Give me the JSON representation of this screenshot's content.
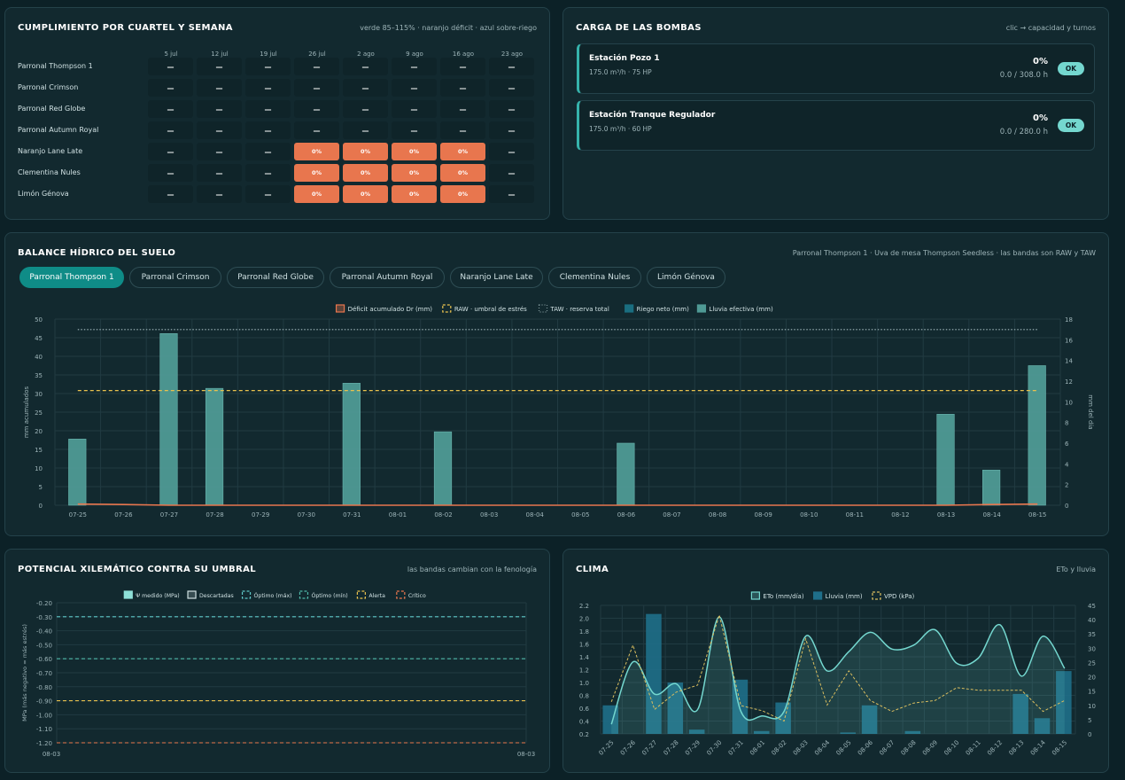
{
  "compliance": {
    "title": "CUMPLIMIENTO POR CUARTEL Y SEMANA",
    "legend": "verde 85–115% · naranjo déficit · azul sobre-riego",
    "weeks": [
      "5 jul",
      "12 jul",
      "19 jul",
      "26 jul",
      "2 ago",
      "9 ago",
      "16 ago",
      "23 ago"
    ],
    "rows": [
      {
        "label": "Parronal Thompson 1",
        "cells": [
          "—",
          "—",
          "—",
          "—",
          "—",
          "—",
          "—",
          "—"
        ]
      },
      {
        "label": "Parronal Crimson",
        "cells": [
          "—",
          "—",
          "—",
          "—",
          "—",
          "—",
          "—",
          "—"
        ]
      },
      {
        "label": "Parronal Red Globe",
        "cells": [
          "—",
          "—",
          "—",
          "—",
          "—",
          "—",
          "—",
          "—"
        ]
      },
      {
        "label": "Parronal Autumn Royal",
        "cells": [
          "—",
          "—",
          "—",
          "—",
          "—",
          "—",
          "—",
          "—"
        ]
      },
      {
        "label": "Naranjo Lane Late",
        "cells": [
          "—",
          "—",
          "—",
          "0%",
          "0%",
          "0%",
          "0%",
          "—"
        ]
      },
      {
        "label": "Clementina Nules",
        "cells": [
          "—",
          "—",
          "—",
          "0%",
          "0%",
          "0%",
          "0%",
          "—"
        ]
      },
      {
        "label": "Limón Génova",
        "cells": [
          "—",
          "—",
          "—",
          "0%",
          "0%",
          "0%",
          "0%",
          "—"
        ]
      }
    ]
  },
  "pumps": {
    "title": "CARGA DE LAS BOMBAS",
    "hint": "clic → capacidad y turnos",
    "items": [
      {
        "name": "Estación Pozo 1",
        "spec": "175.0 m³/h · 75 HP",
        "pct": "0%",
        "hours": "0.0 / 308.0 h",
        "status": "OK"
      },
      {
        "name": "Estación Tranque Regulador",
        "spec": "175.0 m³/h · 60 HP",
        "pct": "0%",
        "hours": "0.0 / 280.0 h",
        "status": "OK"
      }
    ]
  },
  "balance": {
    "title": "BALANCE HÍDRICO DEL SUELO",
    "subtitle": "Parronal Thompson 1 · Uva de mesa Thompson Seedless · las bandas son RAW y TAW",
    "tabs": [
      "Parronal Thompson 1",
      "Parronal Crimson",
      "Parronal Red Globe",
      "Parronal Autumn Royal",
      "Naranjo Lane Late",
      "Clementina Nules",
      "Limón Génova"
    ],
    "active_tab": 0
  },
  "xylem": {
    "title": "POTENCIAL XILEMÁTICO CONTRA SU UMBRAL",
    "subtitle": "las bandas cambian con la fenología"
  },
  "climate": {
    "title": "CLIMA",
    "subtitle": "ETo y lluvia"
  },
  "chart_data": [
    {
      "id": "balance",
      "type": "bar",
      "ylabel": "mm acumulados",
      "y2label": "mm del día",
      "ylim": [
        0,
        50
      ],
      "y2lim": [
        0,
        18
      ],
      "legend_position": "top",
      "grid": true,
      "legend": [
        "Déficit acumulado Dr (mm)",
        "RAW · umbral de estrés",
        "TAW · reserva total",
        "Riego neto (mm)",
        "Lluvia efectiva (mm)"
      ],
      "colors": {
        "deficit": "#e8764e",
        "raw": "#e8c14e",
        "taw": "#7d9499",
        "riego": "#1a6e80",
        "lluvia": "#4f9a95"
      },
      "categories": [
        "07-25",
        "07-26",
        "07-27",
        "07-28",
        "07-29",
        "07-30",
        "07-31",
        "08-01",
        "08-02",
        "08-03",
        "08-04",
        "08-05",
        "08-06",
        "08-07",
        "08-08",
        "08-09",
        "08-10",
        "08-11",
        "08-12",
        "08-13",
        "08-14",
        "08-15"
      ],
      "deficit": [
        0.3,
        0.2,
        0,
        0,
        0,
        0,
        0,
        0,
        0,
        0,
        0,
        0,
        0,
        0,
        0,
        0,
        0,
        0,
        0,
        0,
        0.2,
        0.3
      ],
      "raw": 30.8,
      "taw": 47.2,
      "riego": [
        0,
        0,
        0,
        0,
        0,
        0,
        0,
        0,
        0,
        0,
        0,
        0,
        0,
        0,
        0,
        0,
        0,
        0,
        0,
        0,
        0,
        0
      ],
      "lluvia": [
        6.4,
        0,
        16.6,
        11.3,
        0,
        0,
        11.8,
        0,
        7.1,
        0,
        0,
        0,
        6.0,
        0,
        0,
        0,
        0,
        0,
        0,
        8.8,
        3.4,
        13.5
      ]
    },
    {
      "id": "xylem",
      "type": "line",
      "ylabel": "MPa (más negativo = más estrés)",
      "ylim": [
        -1.2,
        -0.2
      ],
      "yticks": [
        "-0.20",
        "-0.30",
        "-0.40",
        "-0.50",
        "-0.60",
        "-0.70",
        "-0.80",
        "-0.90",
        "-1.00",
        "-1.10",
        "-1.20"
      ],
      "categories": [
        "08-03",
        "08-03"
      ],
      "legend_position": "top",
      "grid": true,
      "legend": [
        "Ψ medido (MPa)",
        "Descartadas",
        "Óptimo (máx)",
        "Óptimo (mín)",
        "Alerta",
        "Crítico"
      ],
      "colors": {
        "medido": "#8ee0d8",
        "descartadas": "#cfe0e2",
        "opt_max": "#5fc8c8",
        "opt_min": "#4fb8a8",
        "alerta": "#e8c14e",
        "critico": "#e8764e"
      },
      "optimo_max": -0.3,
      "optimo_min": -0.6,
      "alerta": -0.9,
      "critico": -1.2,
      "medido": []
    },
    {
      "id": "climate",
      "type": "line",
      "ylim": [
        0.2,
        2.2
      ],
      "y2lim": [
        0,
        45
      ],
      "legend_position": "top",
      "grid": true,
      "legend": [
        "ETo (mm/día)",
        "Lluvia (mm)",
        "VPD (kPa)"
      ],
      "colors": {
        "eto": "#74d7cf",
        "lluvia": "#1f6f8a",
        "vpd": "#d9bd5f"
      },
      "categories": [
        "07-25",
        "07-26",
        "07-27",
        "07-28",
        "07-29",
        "07-30",
        "07-31",
        "08-01",
        "08-02",
        "08-03",
        "08-04",
        "08-05",
        "08-06",
        "08-07",
        "08-08",
        "08-09",
        "08-10",
        "08-11",
        "08-12",
        "08-13",
        "08-14",
        "08-15"
      ],
      "eto": [
        0.35,
        1.32,
        0.82,
        0.98,
        0.58,
        2.02,
        0.55,
        0.48,
        0.55,
        1.72,
        1.18,
        1.48,
        1.78,
        1.52,
        1.58,
        1.82,
        1.3,
        1.38,
        1.9,
        1.1,
        1.72,
        1.22
      ],
      "lluvia": [
        10,
        0,
        42,
        18,
        1.5,
        0,
        19,
        1,
        11,
        0,
        0,
        0.5,
        10,
        0,
        1,
        0,
        0,
        0,
        0,
        14,
        5.5,
        22
      ],
      "vpd": [
        0.7,
        1.58,
        0.58,
        0.85,
        0.96,
        2.05,
        0.64,
        0.56,
        0.4,
        1.68,
        0.65,
        1.18,
        0.72,
        0.55,
        0.68,
        0.72,
        0.92,
        0.88,
        0.88,
        0.88,
        0.55,
        0.72
      ]
    }
  ]
}
